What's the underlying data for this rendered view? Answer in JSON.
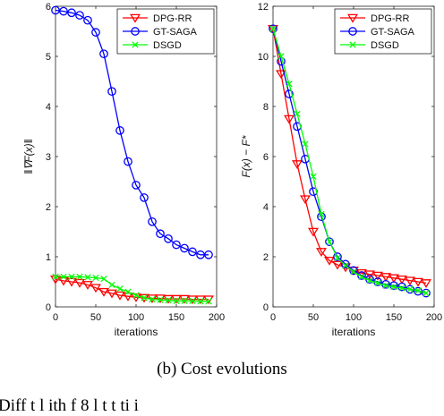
{
  "chart_data": [
    {
      "type": "line",
      "ylabel": "‖∇F(x)‖",
      "xlabel": "iterations",
      "xlim": [
        0,
        200
      ],
      "ylim": [
        0,
        6
      ],
      "xticks": [
        0,
        50,
        100,
        150,
        200
      ],
      "yticks": [
        0,
        1,
        2,
        3,
        4,
        5,
        6
      ],
      "legend_position": "top-right",
      "grid": false,
      "series": [
        {
          "name": "DPG-RR",
          "color": "#ff0000",
          "marker": "triangle-down",
          "x": [
            0,
            10,
            20,
            30,
            40,
            50,
            60,
            70,
            80,
            90,
            100,
            110,
            120,
            130,
            140,
            150,
            160,
            170,
            180,
            190
          ],
          "y": [
            0.55,
            0.52,
            0.5,
            0.48,
            0.44,
            0.38,
            0.3,
            0.27,
            0.23,
            0.21,
            0.19,
            0.18,
            0.17,
            0.17,
            0.16,
            0.16,
            0.16,
            0.15,
            0.15,
            0.15
          ]
        },
        {
          "name": "GT-SAGA",
          "color": "#0000ff",
          "marker": "circle",
          "x": [
            0,
            10,
            20,
            30,
            40,
            50,
            60,
            70,
            80,
            90,
            100,
            110,
            120,
            130,
            140,
            150,
            160,
            170,
            180,
            190
          ],
          "y": [
            5.92,
            5.9,
            5.87,
            5.82,
            5.72,
            5.48,
            5.05,
            4.3,
            3.52,
            2.9,
            2.43,
            2.18,
            1.7,
            1.46,
            1.36,
            1.24,
            1.17,
            1.1,
            1.04,
            1.04
          ]
        },
        {
          "name": "DSGD",
          "color": "#00ff00",
          "marker": "x",
          "x": [
            0,
            10,
            20,
            30,
            40,
            50,
            60,
            70,
            80,
            90,
            100,
            110,
            120,
            130,
            140,
            150,
            160,
            170,
            180,
            190
          ],
          "y": [
            0.6,
            0.6,
            0.6,
            0.6,
            0.59,
            0.58,
            0.56,
            0.44,
            0.36,
            0.3,
            0.23,
            0.18,
            0.15,
            0.14,
            0.13,
            0.12,
            0.12,
            0.12,
            0.11,
            0.11
          ]
        }
      ]
    },
    {
      "type": "line",
      "ylabel": "F(x) − F*",
      "xlabel": "iterations",
      "xlim": [
        0,
        200
      ],
      "ylim": [
        0,
        12
      ],
      "xticks": [
        0,
        50,
        100,
        150,
        200
      ],
      "yticks": [
        0,
        2,
        4,
        6,
        8,
        10,
        12
      ],
      "legend_position": "top-right",
      "grid": false,
      "series": [
        {
          "name": "DPG-RR",
          "color": "#ff0000",
          "marker": "triangle-down",
          "x": [
            0,
            10,
            20,
            30,
            40,
            50,
            60,
            70,
            80,
            90,
            100,
            110,
            120,
            130,
            140,
            150,
            160,
            170,
            180,
            190
          ],
          "y": [
            11.1,
            9.3,
            7.5,
            5.7,
            4.3,
            3.0,
            2.2,
            1.85,
            1.68,
            1.58,
            1.45,
            1.35,
            1.3,
            1.25,
            1.2,
            1.15,
            1.1,
            1.05,
            1.0,
            0.95
          ]
        },
        {
          "name": "GT-SAGA",
          "color": "#0000ff",
          "marker": "circle",
          "x": [
            0,
            10,
            20,
            30,
            40,
            50,
            60,
            70,
            80,
            90,
            100,
            110,
            120,
            130,
            140,
            150,
            160,
            170,
            180,
            190
          ],
          "y": [
            11.1,
            9.8,
            8.5,
            7.2,
            5.9,
            4.6,
            3.6,
            2.6,
            2.0,
            1.7,
            1.45,
            1.25,
            1.1,
            1.0,
            0.9,
            0.85,
            0.8,
            0.7,
            0.62,
            0.55
          ]
        },
        {
          "name": "DSGD",
          "color": "#00ff00",
          "marker": "x",
          "x": [
            0,
            10,
            20,
            30,
            40,
            50,
            60,
            70,
            80,
            90,
            100,
            110,
            120,
            130,
            140,
            150,
            160,
            170,
            180,
            190
          ],
          "y": [
            11.1,
            10.0,
            8.9,
            7.7,
            6.5,
            5.2,
            3.7,
            2.6,
            1.95,
            1.65,
            1.4,
            1.2,
            1.05,
            0.95,
            0.85,
            0.8,
            0.75,
            0.7,
            0.65,
            0.55
          ]
        }
      ]
    }
  ],
  "caption": {
    "subcaption": "(b)  Cost evolutions",
    "cut_text": "Diff     t  l   ith       f       8  l t   t       ti    i"
  }
}
